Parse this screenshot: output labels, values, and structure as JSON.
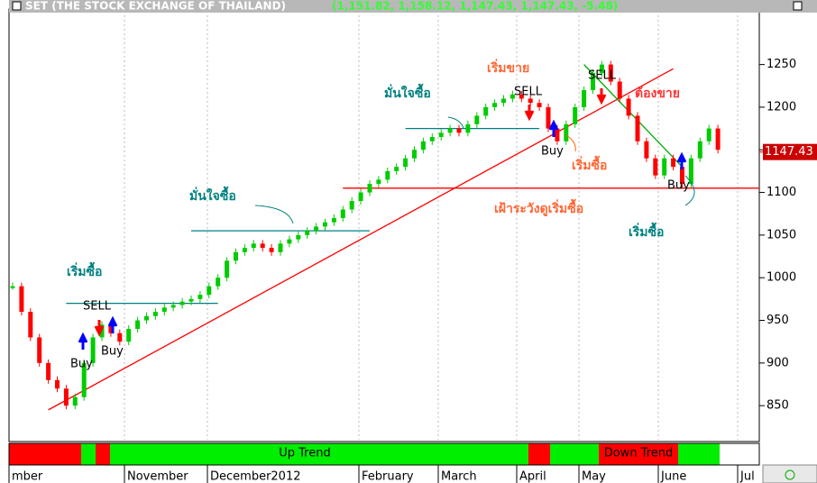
{
  "chart_data": {
    "type": "candlestick",
    "title": "SET (THE STOCK EXCHANGE OF THAILAND)",
    "subtitle": "(1,151.82, 1,158.12, 1,147.43, 1,147.43, -5.48)",
    "last_price": 1147.43,
    "last_price_label": "1147.43",
    "series": [
      {
        "name": "SET",
        "values": [
          990,
          960,
          930,
          900,
          880,
          870,
          850,
          860,
          900,
          930,
          945,
          935,
          925,
          940,
          950,
          955,
          960,
          965,
          968,
          972,
          975,
          980,
          990,
          1000,
          1020,
          1030,
          1035,
          1040,
          1035,
          1030,
          1040,
          1045,
          1050,
          1055,
          1060,
          1065,
          1070,
          1080,
          1090,
          1100,
          1110,
          1115,
          1125,
          1130,
          1140,
          1150,
          1160,
          1165,
          1170,
          1175,
          1170,
          1180,
          1190,
          1200,
          1205,
          1210,
          1215,
          1210,
          1205,
          1200,
          1175,
          1160,
          1180,
          1200,
          1220,
          1240,
          1250,
          1230,
          1210,
          1190,
          1160,
          1140,
          1120,
          1140,
          1130,
          1110,
          1140,
          1160,
          1175,
          1150
        ]
      }
    ],
    "up_color": "#00cc00",
    "down_color": "#ff0000",
    "ylim": [
      810,
      1313
    ],
    "yticks": [
      850,
      900,
      950,
      1000,
      1050,
      1100,
      1150,
      1200,
      1250
    ],
    "levels": [
      {
        "value": 970,
        "from": 6,
        "to": 23,
        "color": "#008080"
      },
      {
        "value": 1055,
        "from": 20,
        "to": 40,
        "color": "#008080"
      },
      {
        "value": 1175,
        "from": 44,
        "to": 59,
        "color": "#008080"
      },
      {
        "value": 1105,
        "from": 37,
        "to": 84,
        "color": "#ff0000"
      }
    ],
    "trendlines": [
      {
        "from": 4,
        "to": 74,
        "start": 845,
        "end": 1245,
        "color": "#ff0000"
      },
      {
        "from": 64,
        "to": 75,
        "start": 1250,
        "end": 1130,
        "color": "#00aa00"
      }
    ],
    "x_labels": [
      "mber",
      "November",
      "December2012",
      "February",
      "March",
      "April",
      "May",
      "June",
      "Jul"
    ],
    "trend_labels": [
      "Up Trend",
      "Down Trend"
    ],
    "annotations": [
      "เริ่มซื้อ",
      "SELL",
      "Buy",
      "Buy",
      "มั่นใจซื้อ",
      "มั่นใจซื้อ",
      "เริ่มขาย",
      "SELL",
      "Buy",
      "เริ่มซื้อ",
      "SELL",
      "ต้องขาย",
      "เฝ้าระวังดูเริ่มซื้อ",
      "Buy",
      "เริ่มซื้อ"
    ]
  }
}
